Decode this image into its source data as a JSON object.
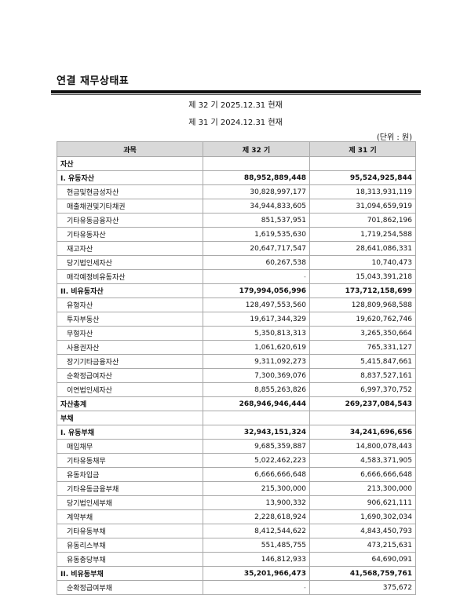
{
  "title": "연결 재무상태표",
  "period_current": "제 32 기 2025.12.31 현재",
  "period_prior": "제 31 기 2024.12.31 현재",
  "unit": "(단위 : 원)",
  "table": {
    "headers": [
      "과목",
      "제 32 기",
      "제 31 기"
    ],
    "rows": [
      {
        "type": "section",
        "label": "자산",
        "current": "",
        "prior": ""
      },
      {
        "type": "subtotal",
        "label": "I. 유동자산",
        "current": "88,952,889,448",
        "prior": "95,524,925,844"
      },
      {
        "type": "item",
        "label": "현금및현금성자산",
        "current": "30,828,997,177",
        "prior": "18,313,931,119"
      },
      {
        "type": "item",
        "label": "매출채권및기타채권",
        "current": "34,944,833,605",
        "prior": "31,094,659,919"
      },
      {
        "type": "item",
        "label": "기타유동금융자산",
        "current": "851,537,951",
        "prior": "701,862,196"
      },
      {
        "type": "item",
        "label": "기타유동자산",
        "current": "1,619,535,630",
        "prior": "1,719,254,588"
      },
      {
        "type": "item",
        "label": "재고자산",
        "current": "20,647,717,547",
        "prior": "28,641,086,331"
      },
      {
        "type": "item",
        "label": "당기법인세자산",
        "current": "60,267,538",
        "prior": "10,740,473"
      },
      {
        "type": "item",
        "label": "매각예정비유동자산",
        "current": "-",
        "prior": "15,043,391,218"
      },
      {
        "type": "subtotal",
        "label": "II. 비유동자산",
        "current": "179,994,056,996",
        "prior": "173,712,158,699"
      },
      {
        "type": "item",
        "label": "유형자산",
        "current": "128,497,553,560",
        "prior": "128,809,968,588"
      },
      {
        "type": "item",
        "label": "투자부동산",
        "current": "19,617,344,329",
        "prior": "19,620,762,746"
      },
      {
        "type": "item",
        "label": "무형자산",
        "current": "5,350,813,313",
        "prior": "3,265,350,664"
      },
      {
        "type": "item",
        "label": "사용권자산",
        "current": "1,061,620,619",
        "prior": "765,331,127"
      },
      {
        "type": "item",
        "label": "장기기타금융자산",
        "current": "9,311,092,273",
        "prior": "5,415,847,661"
      },
      {
        "type": "item",
        "label": "순확정급여자산",
        "current": "7,300,369,076",
        "prior": "8,837,527,161"
      },
      {
        "type": "item",
        "label": "이연법인세자산",
        "current": "8,855,263,826",
        "prior": "6,997,370,752"
      },
      {
        "type": "subtotal",
        "label": "자산총계",
        "current": "268,946,946,444",
        "prior": "269,237,084,543"
      },
      {
        "type": "section",
        "label": "부채",
        "current": "",
        "prior": ""
      },
      {
        "type": "subtotal",
        "label": "I. 유동부채",
        "current": "32,943,151,324",
        "prior": "34,241,696,656"
      },
      {
        "type": "item",
        "label": "매입채무",
        "current": "9,685,359,887",
        "prior": "14,800,078,443"
      },
      {
        "type": "item",
        "label": "기타유동채무",
        "current": "5,022,462,223",
        "prior": "4,583,371,905"
      },
      {
        "type": "item",
        "label": "유동차입금",
        "current": "6,666,666,648",
        "prior": "6,666,666,648"
      },
      {
        "type": "item",
        "label": "기타유동금융부채",
        "current": "215,300,000",
        "prior": "213,300,000"
      },
      {
        "type": "item",
        "label": "당기법인세부채",
        "current": "13,900,332",
        "prior": "906,621,111"
      },
      {
        "type": "item",
        "label": "계약부채",
        "current": "2,228,618,924",
        "prior": "1,690,302,034"
      },
      {
        "type": "item",
        "label": "기타유동부채",
        "current": "8,412,544,622",
        "prior": "4,843,450,793"
      },
      {
        "type": "item",
        "label": "유동리스부채",
        "current": "551,485,755",
        "prior": "473,215,631"
      },
      {
        "type": "item",
        "label": "유동충당부채",
        "current": "146,812,933",
        "prior": "64,690,091"
      },
      {
        "type": "subtotal",
        "label": "II. 비유동부채",
        "current": "35,201,966,473",
        "prior": "41,568,759,761"
      },
      {
        "type": "item",
        "label": "순확정급여부채",
        "current": "-",
        "prior": "375,672"
      }
    ]
  }
}
